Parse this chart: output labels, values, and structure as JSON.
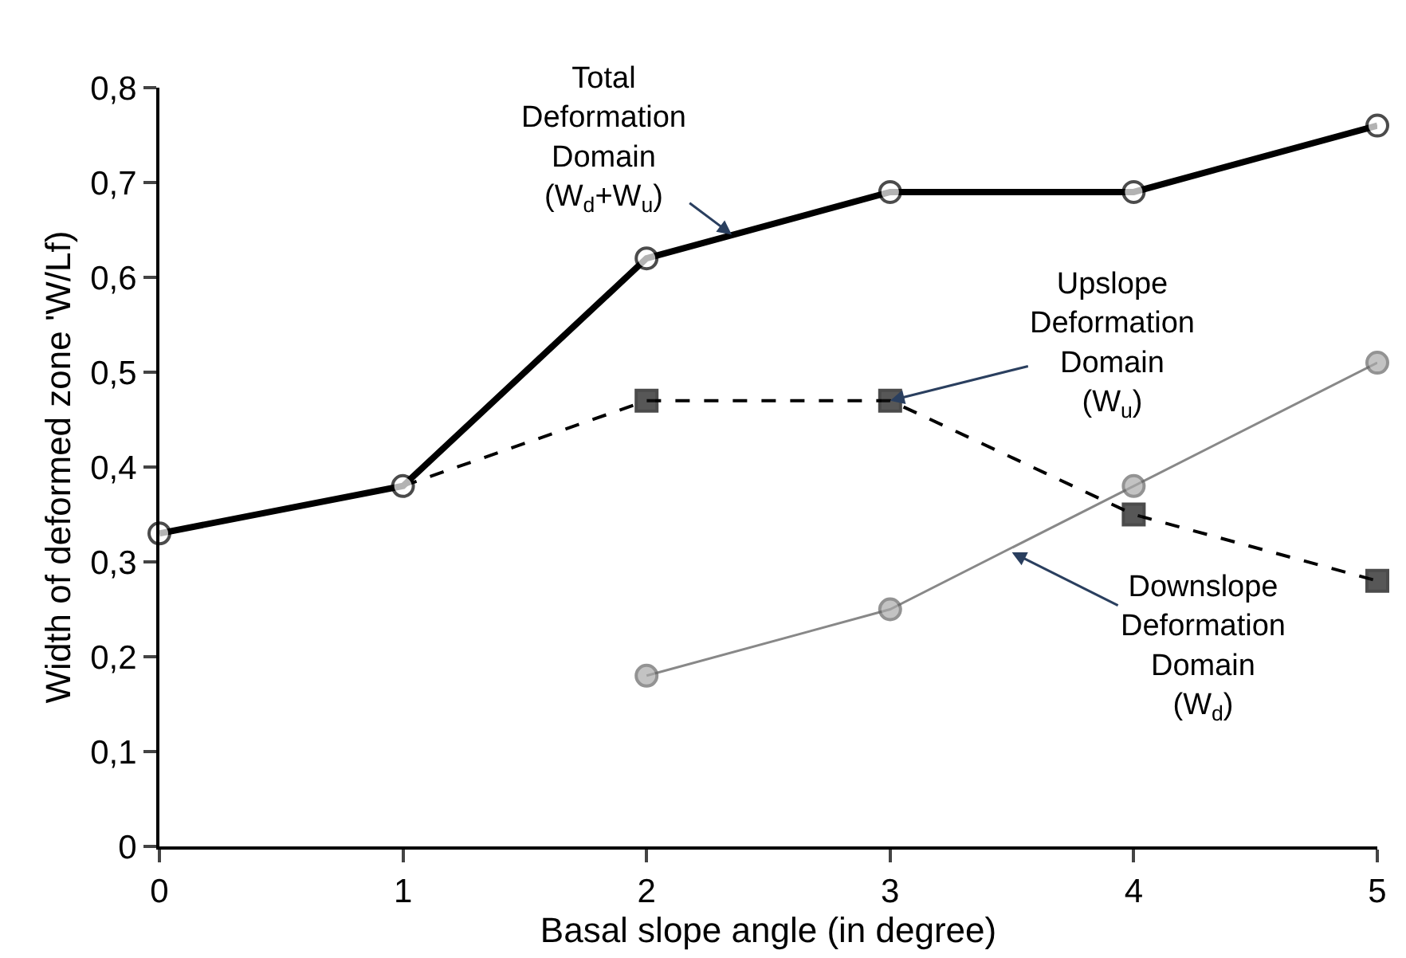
{
  "chart_data": {
    "type": "line",
    "xlabel": "Basal slope angle (in degree)",
    "ylabel": "Width of deformed zone 'W/Lf)",
    "x": [
      0,
      1,
      2,
      3,
      4,
      5
    ],
    "series": [
      {
        "color": "#000000",
        "values": [
          0.33,
          0.38,
          0.62,
          0.69,
          0.69,
          0.76
        ],
        "marker": "circle",
        "line_style": "solid"
      },
      {
        "color": "#000000",
        "values": [
          null,
          0.38,
          0.47,
          0.47,
          0.35,
          0.28
        ],
        "marker": "square",
        "line_style": "dashed"
      },
      {
        "color": "#888888",
        "values": [
          null,
          null,
          0.18,
          0.25,
          0.38,
          0.51
        ],
        "marker": "circle",
        "line_style": "solid"
      }
    ],
    "xlim": [
      0,
      5
    ],
    "xticks": [
      0,
      1,
      2,
      3,
      4,
      5
    ],
    "ylim": [
      0,
      0.8
    ],
    "yticks": [
      0,
      {
        "value": 0.1,
        "label": "0,1"
      },
      {
        "value": 0.2,
        "label": "0,2"
      },
      {
        "value": 0.3,
        "label": "0,3"
      },
      {
        "value": 0.4,
        "label": "0,4"
      },
      {
        "value": 0.5,
        "label": "0,5"
      },
      {
        "value": 0.6,
        "label": "0,6"
      },
      {
        "value": 0.7,
        "label": "0,7"
      },
      {
        "value": 0.8,
        "label": "0,8"
      }
    ],
    "annotations": [
      {
        "text": "Total\nDeformation\nDomain\n(W$_{d}$+W$_{u}$)",
        "x": 2.35,
        "y": 0.645
      },
      {
        "text": "Upslope\nDeformation\nDomain\n(W$_{u}$)",
        "x": 3.0,
        "y": 0.47
      },
      {
        "text": "Downslope\nDeformation\nDomain\n(W$_{d}$)",
        "x": 3.5,
        "y": 0.31
      }
    ]
  }
}
